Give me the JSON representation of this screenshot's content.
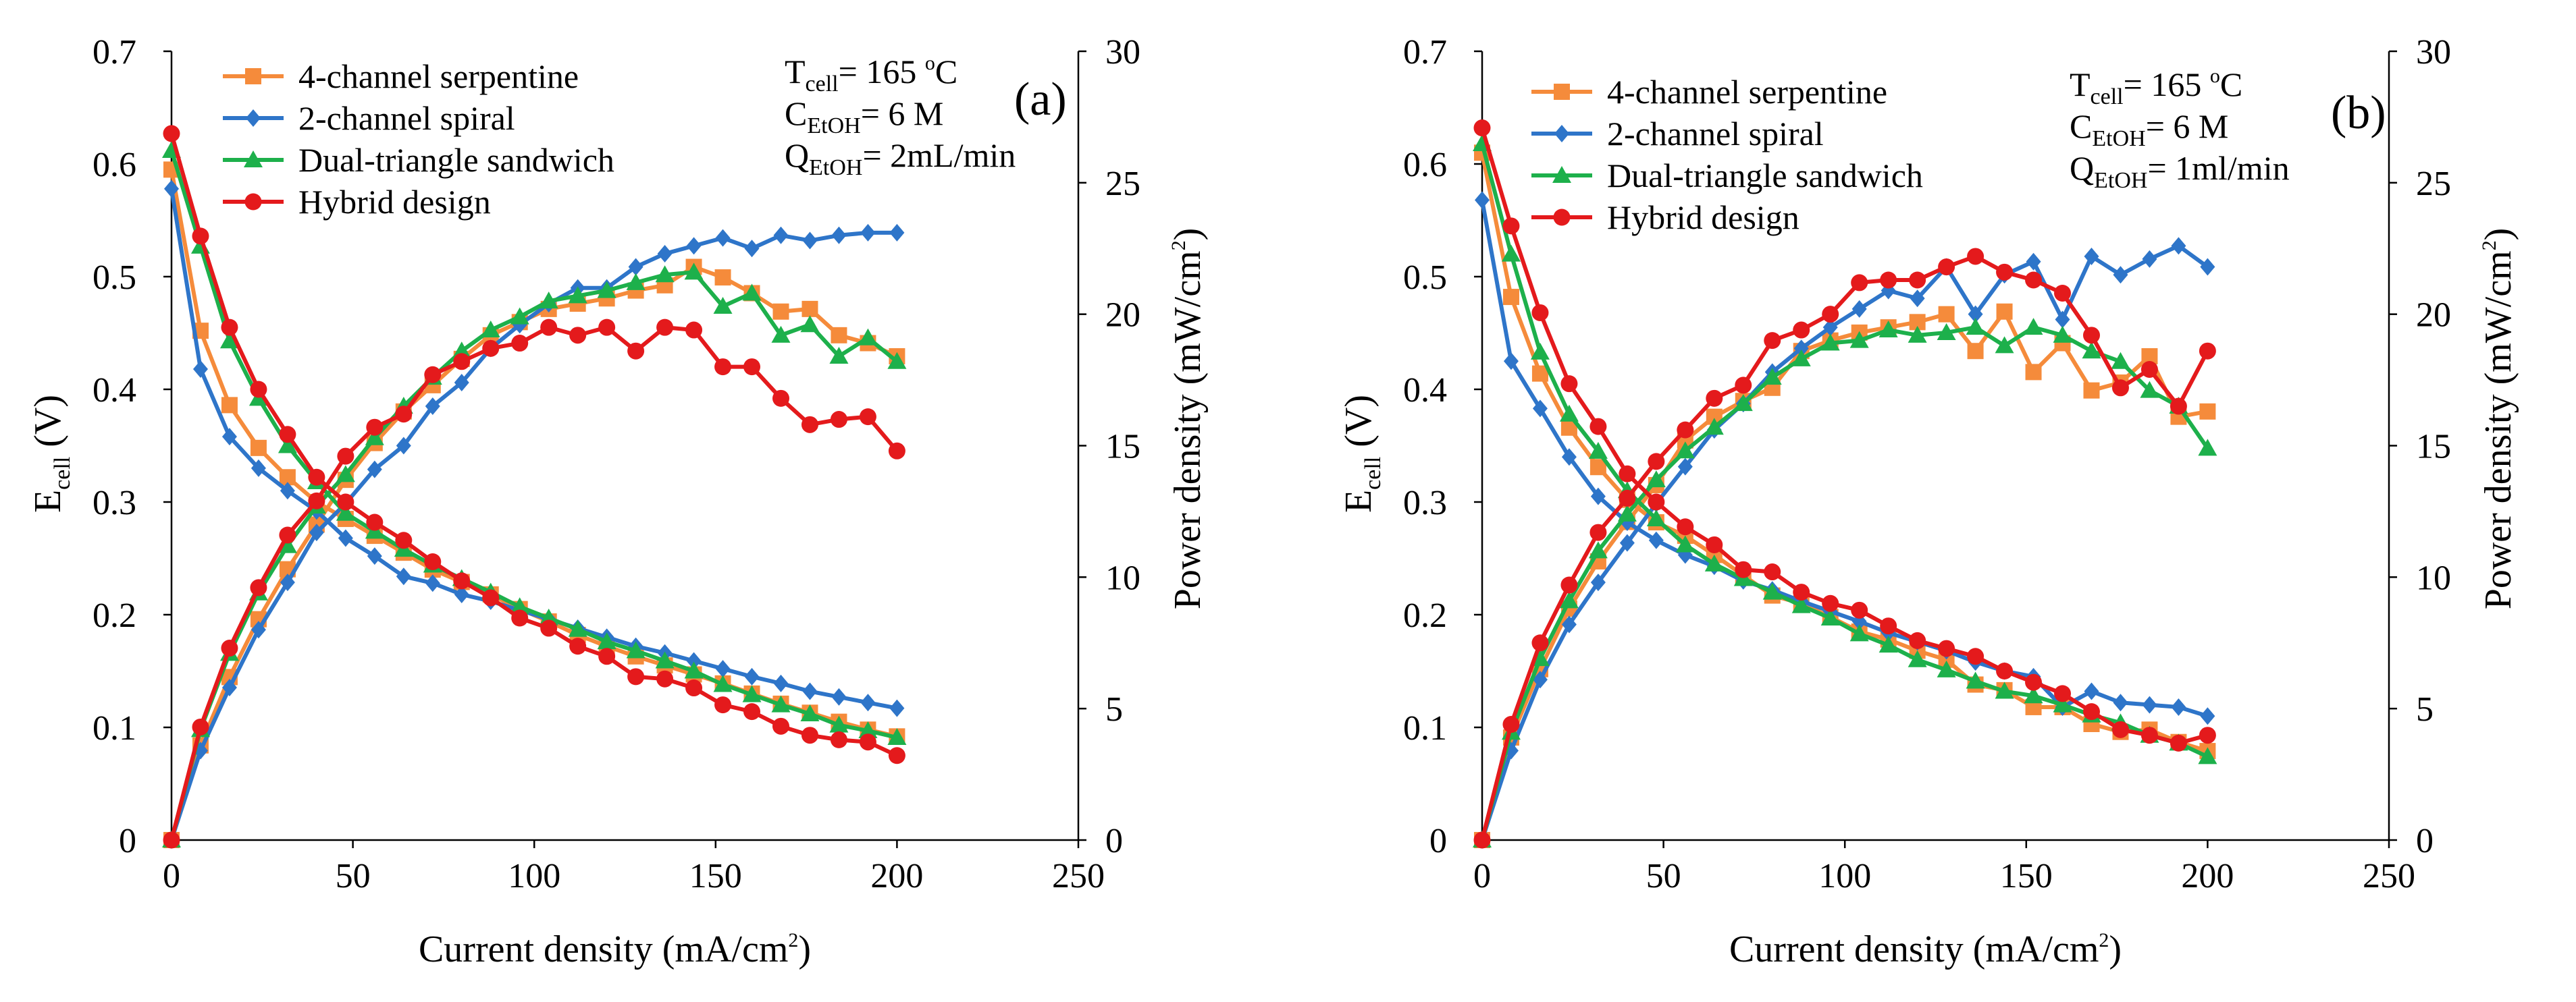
{
  "figure": {
    "panels": [
      "a",
      "b"
    ]
  },
  "chart_data": [
    {
      "type": "line",
      "panel": "a",
      "panel_label": "(a)",
      "x_axis": {
        "label": "Current density (mA/cm",
        "label_sup": "2",
        "label_end": ")",
        "range": [
          0,
          250
        ],
        "ticks": [
          0,
          50,
          100,
          150,
          200,
          250
        ],
        "tick_labels": [
          "0",
          "50",
          "100",
          "150",
          "200",
          "250"
        ]
      },
      "y_left": {
        "label": "E",
        "label_sub": "cell",
        "label_end": " (V)",
        "range": [
          0,
          0.7
        ],
        "ticks": [
          0,
          0.1,
          0.2,
          0.3,
          0.4,
          0.5,
          0.6,
          0.7
        ],
        "tick_labels": [
          "0",
          "0.1",
          "0.2",
          "0.3",
          "0.4",
          "0.5",
          "0.6",
          "0.7"
        ]
      },
      "y_right": {
        "label": "Power density (mW/cm",
        "label_sup": "2",
        "label_end": ")",
        "range": [
          0,
          30
        ],
        "ticks": [
          0,
          5,
          10,
          15,
          20,
          25,
          30
        ],
        "tick_labels": [
          "0",
          "5",
          "10",
          "15",
          "20",
          "25",
          "30"
        ]
      },
      "conditions": {
        "temp": {
          "main": "T",
          "sub": "cell",
          "rest": "= 165 ",
          "sup": "o",
          "end": "C"
        },
        "conc": {
          "main": "C",
          "sub": "EtOH",
          "rest": "= 6 M"
        },
        "flow": {
          "main": "Q",
          "sub": "EtOH",
          "rest": "= 2mL/min"
        }
      },
      "x": [
        0,
        8,
        16,
        24,
        32,
        40,
        48,
        56,
        64,
        72,
        80,
        88,
        96,
        104,
        112,
        120,
        128,
        136,
        144,
        152,
        160,
        168,
        176,
        184,
        192,
        200
      ],
      "series": [
        {
          "name": "4-channel serpentine",
          "color": "#F58B3B",
          "marker": "square",
          "voltage": [
            0.595,
            0.452,
            0.386,
            0.348,
            0.322,
            0.3,
            0.285,
            0.27,
            0.255,
            0.24,
            0.229,
            0.218,
            0.205,
            0.194,
            0.182,
            0.172,
            0.163,
            0.155,
            0.147,
            0.139,
            0.13,
            0.121,
            0.113,
            0.105,
            0.098,
            0.092
          ],
          "power": [
            0,
            3.6,
            6.2,
            8.4,
            10.3,
            12.0,
            13.7,
            15.1,
            16.3,
            17.3,
            18.3,
            19.2,
            19.7,
            20.2,
            20.4,
            20.6,
            20.9,
            21.1,
            21.8,
            21.4,
            20.8,
            20.1,
            20.2,
            19.2,
            18.9,
            18.4
          ]
        },
        {
          "name": "2-channel spiral",
          "color": "#2E75C9",
          "marker": "diamond",
          "voltage": [
            0.578,
            0.418,
            0.358,
            0.33,
            0.31,
            0.292,
            0.268,
            0.252,
            0.234,
            0.228,
            0.218,
            0.212,
            0.204,
            0.196,
            0.188,
            0.18,
            0.172,
            0.166,
            0.159,
            0.152,
            0.145,
            0.139,
            0.132,
            0.127,
            0.122,
            0.117
          ],
          "power": [
            0,
            3.4,
            5.8,
            8.0,
            9.8,
            11.7,
            12.8,
            14.1,
            15.0,
            16.5,
            17.4,
            18.7,
            19.6,
            20.4,
            21.0,
            21.0,
            21.8,
            22.3,
            22.6,
            22.9,
            22.5,
            23.0,
            22.8,
            23.0,
            23.1,
            23.1
          ]
        },
        {
          "name": "Dual-triangle sandwich",
          "color": "#1DB04B",
          "marker": "triangle",
          "voltage": [
            0.612,
            0.527,
            0.443,
            0.392,
            0.35,
            0.318,
            0.29,
            0.274,
            0.258,
            0.244,
            0.232,
            0.22,
            0.207,
            0.197,
            0.187,
            0.176,
            0.168,
            0.159,
            0.15,
            0.138,
            0.129,
            0.12,
            0.112,
            0.102,
            0.097,
            0.091
          ],
          "power": [
            0,
            4.2,
            7.1,
            9.4,
            11.2,
            12.7,
            13.9,
            15.3,
            16.5,
            17.6,
            18.6,
            19.4,
            19.9,
            20.5,
            20.7,
            20.9,
            21.2,
            21.5,
            21.6,
            20.3,
            20.8,
            19.2,
            19.6,
            18.4,
            19.1,
            18.2
          ]
        },
        {
          "name": "Hybrid design",
          "color": "#E41A1C",
          "marker": "circle",
          "voltage": [
            0.627,
            0.536,
            0.455,
            0.4,
            0.36,
            0.322,
            0.3,
            0.282,
            0.266,
            0.247,
            0.23,
            0.215,
            0.197,
            0.188,
            0.172,
            0.163,
            0.145,
            0.143,
            0.135,
            0.12,
            0.114,
            0.101,
            0.093,
            0.089,
            0.087,
            0.075
          ],
          "power": [
            0,
            4.3,
            7.3,
            9.6,
            11.6,
            12.9,
            14.6,
            15.7,
            16.2,
            17.7,
            18.2,
            18.7,
            18.9,
            19.5,
            19.2,
            19.5,
            18.6,
            19.5,
            19.4,
            18.0,
            18.0,
            16.8,
            15.8,
            16.0,
            16.1,
            14.8
          ]
        }
      ]
    },
    {
      "type": "line",
      "panel": "b",
      "panel_label": "(b)",
      "x_axis": {
        "label": "Current density (mA/cm",
        "label_sup": "2",
        "label_end": ")",
        "range": [
          0,
          250
        ],
        "ticks": [
          0,
          50,
          100,
          150,
          200,
          250
        ],
        "tick_labels": [
          "0",
          "50",
          "100",
          "150",
          "200",
          "250"
        ]
      },
      "y_left": {
        "label": "E",
        "label_sub": "cell",
        "label_end": " (V)",
        "range": [
          0,
          0.7
        ],
        "ticks": [
          0,
          0.1,
          0.2,
          0.3,
          0.4,
          0.5,
          0.6,
          0.7
        ],
        "tick_labels": [
          "0",
          "0.1",
          "0.2",
          "0.3",
          "0.4",
          "0.5",
          "0.6",
          "0.7"
        ]
      },
      "y_right": {
        "label": "Power density (mW/cm",
        "label_sup": "2",
        "label_end": ")",
        "range": [
          0,
          30
        ],
        "ticks": [
          0,
          5,
          10,
          15,
          20,
          25,
          30
        ],
        "tick_labels": [
          "0",
          "5",
          "10",
          "15",
          "20",
          "25",
          "30"
        ]
      },
      "conditions": {
        "temp": {
          "main": "T",
          "sub": "cell",
          "rest": "= 165 ",
          "sup": "o",
          "end": "C"
        },
        "conc": {
          "main": "C",
          "sub": "EtOH",
          "rest": "= 6 M"
        },
        "flow": {
          "main": "Q",
          "sub": "EtOH",
          "rest": "= 1ml/min"
        }
      },
      "x": [
        0,
        8,
        16,
        24,
        32,
        40,
        48,
        56,
        64,
        72,
        80,
        88,
        96,
        104,
        112,
        120,
        128,
        136,
        144,
        152,
        160,
        168,
        176,
        184,
        192,
        200
      ],
      "series": [
        {
          "name": "4-channel serpentine",
          "color": "#F58B3B",
          "marker": "square",
          "voltage": [
            0.61,
            0.482,
            0.414,
            0.366,
            0.331,
            0.302,
            0.282,
            0.27,
            0.253,
            0.235,
            0.217,
            0.21,
            0.198,
            0.185,
            0.178,
            0.168,
            0.16,
            0.138,
            0.133,
            0.118,
            0.118,
            0.103,
            0.096,
            0.098,
            0.087,
            0.079
          ],
          "power": [
            0,
            3.9,
            6.5,
            8.8,
            10.6,
            12.1,
            13.5,
            15.2,
            16.1,
            16.7,
            17.2,
            18.6,
            19.0,
            19.3,
            19.5,
            19.7,
            20.0,
            18.6,
            20.1,
            17.8,
            18.9,
            17.1,
            17.4,
            18.4,
            16.1,
            16.3
          ]
        },
        {
          "name": "2-channel spiral",
          "color": "#2E75C9",
          "marker": "diamond",
          "voltage": [
            0.568,
            0.425,
            0.383,
            0.34,
            0.305,
            0.282,
            0.266,
            0.253,
            0.243,
            0.23,
            0.222,
            0.212,
            0.203,
            0.194,
            0.184,
            0.176,
            0.168,
            0.158,
            0.15,
            0.145,
            0.118,
            0.132,
            0.122,
            0.12,
            0.118,
            0.11
          ],
          "power": [
            0,
            3.4,
            6.1,
            8.2,
            9.8,
            11.3,
            12.8,
            14.2,
            15.6,
            16.6,
            17.8,
            18.7,
            19.5,
            20.2,
            20.9,
            20.6,
            21.8,
            20.0,
            21.5,
            22.0,
            19.8,
            22.2,
            21.5,
            22.1,
            22.6,
            21.8
          ]
        },
        {
          "name": "Dual-triangle sandwich",
          "color": "#1DB04B",
          "marker": "triangle",
          "voltage": [
            0.618,
            0.52,
            0.433,
            0.378,
            0.345,
            0.31,
            0.285,
            0.262,
            0.245,
            0.232,
            0.22,
            0.208,
            0.197,
            0.183,
            0.173,
            0.16,
            0.151,
            0.141,
            0.132,
            0.128,
            0.12,
            0.111,
            0.104,
            0.093,
            0.086,
            0.074
          ],
          "power": [
            0,
            4.1,
            6.9,
            9.1,
            11.0,
            12.4,
            13.7,
            14.8,
            15.7,
            16.6,
            17.6,
            18.3,
            18.9,
            19.0,
            19.4,
            19.2,
            19.3,
            19.5,
            18.8,
            19.5,
            19.2,
            18.6,
            18.2,
            17.1,
            16.5,
            14.9
          ]
        },
        {
          "name": "Hybrid design",
          "color": "#E41A1C",
          "marker": "circle",
          "voltage": [
            0.632,
            0.545,
            0.468,
            0.405,
            0.367,
            0.325,
            0.3,
            0.278,
            0.262,
            0.24,
            0.238,
            0.22,
            0.21,
            0.204,
            0.19,
            0.177,
            0.17,
            0.163,
            0.15,
            0.14,
            0.13,
            0.114,
            0.098,
            0.093,
            0.086,
            0.093
          ],
          "power": [
            0,
            4.4,
            7.5,
            9.7,
            11.7,
            13.0,
            14.4,
            15.6,
            16.8,
            17.3,
            19.0,
            19.4,
            20.0,
            21.2,
            21.3,
            21.3,
            21.8,
            22.2,
            21.6,
            21.3,
            20.8,
            19.2,
            17.2,
            17.9,
            16.5,
            18.6
          ]
        }
      ]
    }
  ]
}
